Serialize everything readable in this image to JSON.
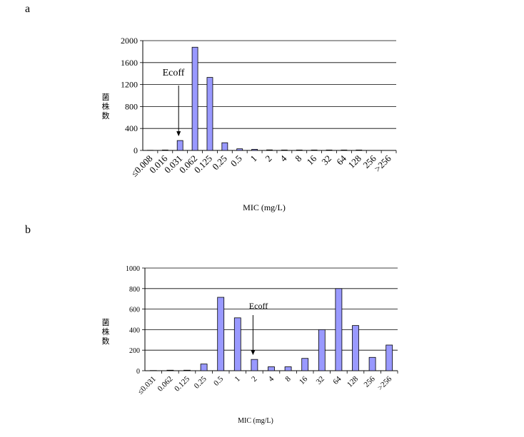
{
  "panels": [
    {
      "label": "a"
    },
    {
      "label": "b"
    }
  ],
  "chart_data": [
    {
      "type": "bar",
      "xlabel": "MIC (mg/L)",
      "ylabel": "菌株数",
      "categories": [
        "≤0.008",
        "0.016",
        "0.031",
        "0.062",
        "0.125",
        "0.25",
        "0.5",
        "1",
        "2",
        "4",
        "8",
        "16",
        "32",
        "64",
        "128",
        "256",
        ">256"
      ],
      "values": [
        3,
        8,
        180,
        1880,
        1330,
        140,
        30,
        20,
        10,
        8,
        8,
        8,
        8,
        8,
        8,
        0,
        0
      ],
      "ylim": [
        0,
        2000
      ],
      "yticks": [
        0,
        400,
        800,
        1200,
        1600,
        2000
      ],
      "grid": true,
      "annotation": {
        "text": "Ecoff",
        "category": "0.031"
      },
      "bar_color": "#9999ff"
    },
    {
      "type": "bar",
      "xlabel": "MIC (mg/L)",
      "ylabel": "菌株数",
      "categories": [
        "≤0.031",
        "0.062",
        "0.125",
        "0.25",
        "0.5",
        "1",
        "2",
        "4",
        "8",
        "16",
        "32",
        "64",
        "128",
        "256",
        ">256"
      ],
      "values": [
        2,
        5,
        5,
        65,
        715,
        515,
        110,
        38,
        38,
        120,
        400,
        800,
        440,
        130,
        250
      ],
      "ylim": [
        0,
        1000
      ],
      "yticks": [
        0,
        200,
        400,
        600,
        800,
        1000
      ],
      "grid": true,
      "annotation": {
        "text": "Ecoff",
        "category": "2"
      },
      "bar_color": "#9999ff"
    }
  ]
}
